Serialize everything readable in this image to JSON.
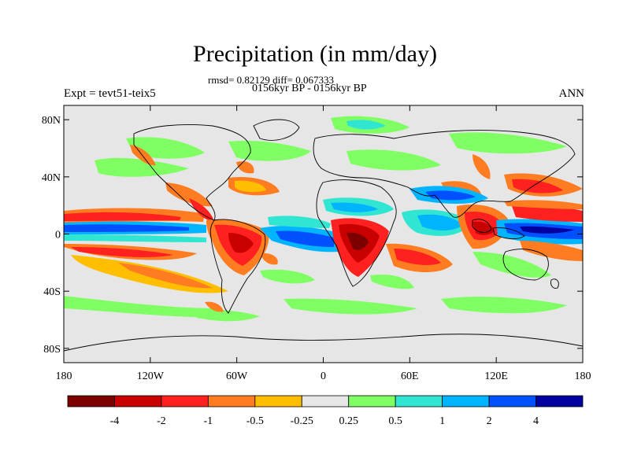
{
  "chart_data": {
    "type": "heatmap",
    "title": "Precipitation (in mm/day)",
    "subtitle_stats": "rmsd= 0.82129 diff= 0.067333",
    "subtitle_period": "0156kyr BP - 0156kyr BP",
    "left_label": "Expt = tevt51-teix5",
    "right_label": "ANN",
    "xlim": [
      -180,
      180
    ],
    "ylim": [
      -90,
      90
    ],
    "x_ticks": [
      {
        "value": -180,
        "label": "180"
      },
      {
        "value": -120,
        "label": "120W"
      },
      {
        "value": -60,
        "label": "60W"
      },
      {
        "value": 0,
        "label": "0"
      },
      {
        "value": 60,
        "label": "60E"
      },
      {
        "value": 120,
        "label": "120E"
      },
      {
        "value": 180,
        "label": "180"
      }
    ],
    "y_ticks": [
      {
        "value": 80,
        "label": "80N"
      },
      {
        "value": 40,
        "label": "40N"
      },
      {
        "value": 0,
        "label": "0"
      },
      {
        "value": -40,
        "label": "40S"
      },
      {
        "value": -80,
        "label": "80S"
      }
    ],
    "colorbar": {
      "levels": [
        "-4",
        "-2",
        "-1",
        "-0.5",
        "-0.25",
        "0.25",
        "0.5",
        "1",
        "2",
        "4"
      ],
      "colors": [
        "#7d0000",
        "#c80000",
        "#ff2020",
        "#ff7d20",
        "#ffbe00",
        "#e6e6e6",
        "#80ff64",
        "#30e6d2",
        "#00b4ff",
        "#0050ff",
        "#0000a0"
      ]
    }
  }
}
